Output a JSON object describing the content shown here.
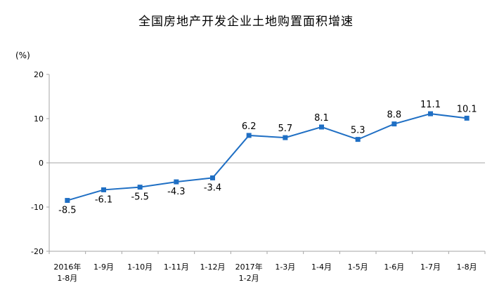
{
  "chart_data": {
    "type": "line",
    "title": "全国房地产开发企业土地购置面积增速",
    "unit": "(%)",
    "categories": [
      [
        "2016年",
        "1-8月"
      ],
      [
        "1-9月"
      ],
      [
        "1-10月"
      ],
      [
        "1-11月"
      ],
      [
        "1-12月"
      ],
      [
        "2017年",
        "1-2月"
      ],
      [
        "1-3月"
      ],
      [
        "1-4月"
      ],
      [
        "1-5月"
      ],
      [
        "1-6月"
      ],
      [
        "1-7月"
      ],
      [
        "1-8月"
      ]
    ],
    "values": [
      -8.5,
      -6.1,
      -5.5,
      -4.3,
      -3.4,
      6.2,
      5.7,
      8.1,
      5.3,
      8.8,
      11.1,
      10.1
    ],
    "value_labels": [
      "-8.5",
      "-6.1",
      "-5.5",
      "-4.3",
      "-3.4",
      "6.2",
      "5.7",
      "8.1",
      "5.3",
      "8.8",
      "11.1",
      "10.1"
    ],
    "yticks": [
      "20",
      "10",
      "0",
      "-10",
      "-20"
    ],
    "ylim": [
      -20,
      20
    ],
    "grid": false,
    "line_color": "#1f6fc4",
    "axis_color": "#a6a6a6"
  }
}
